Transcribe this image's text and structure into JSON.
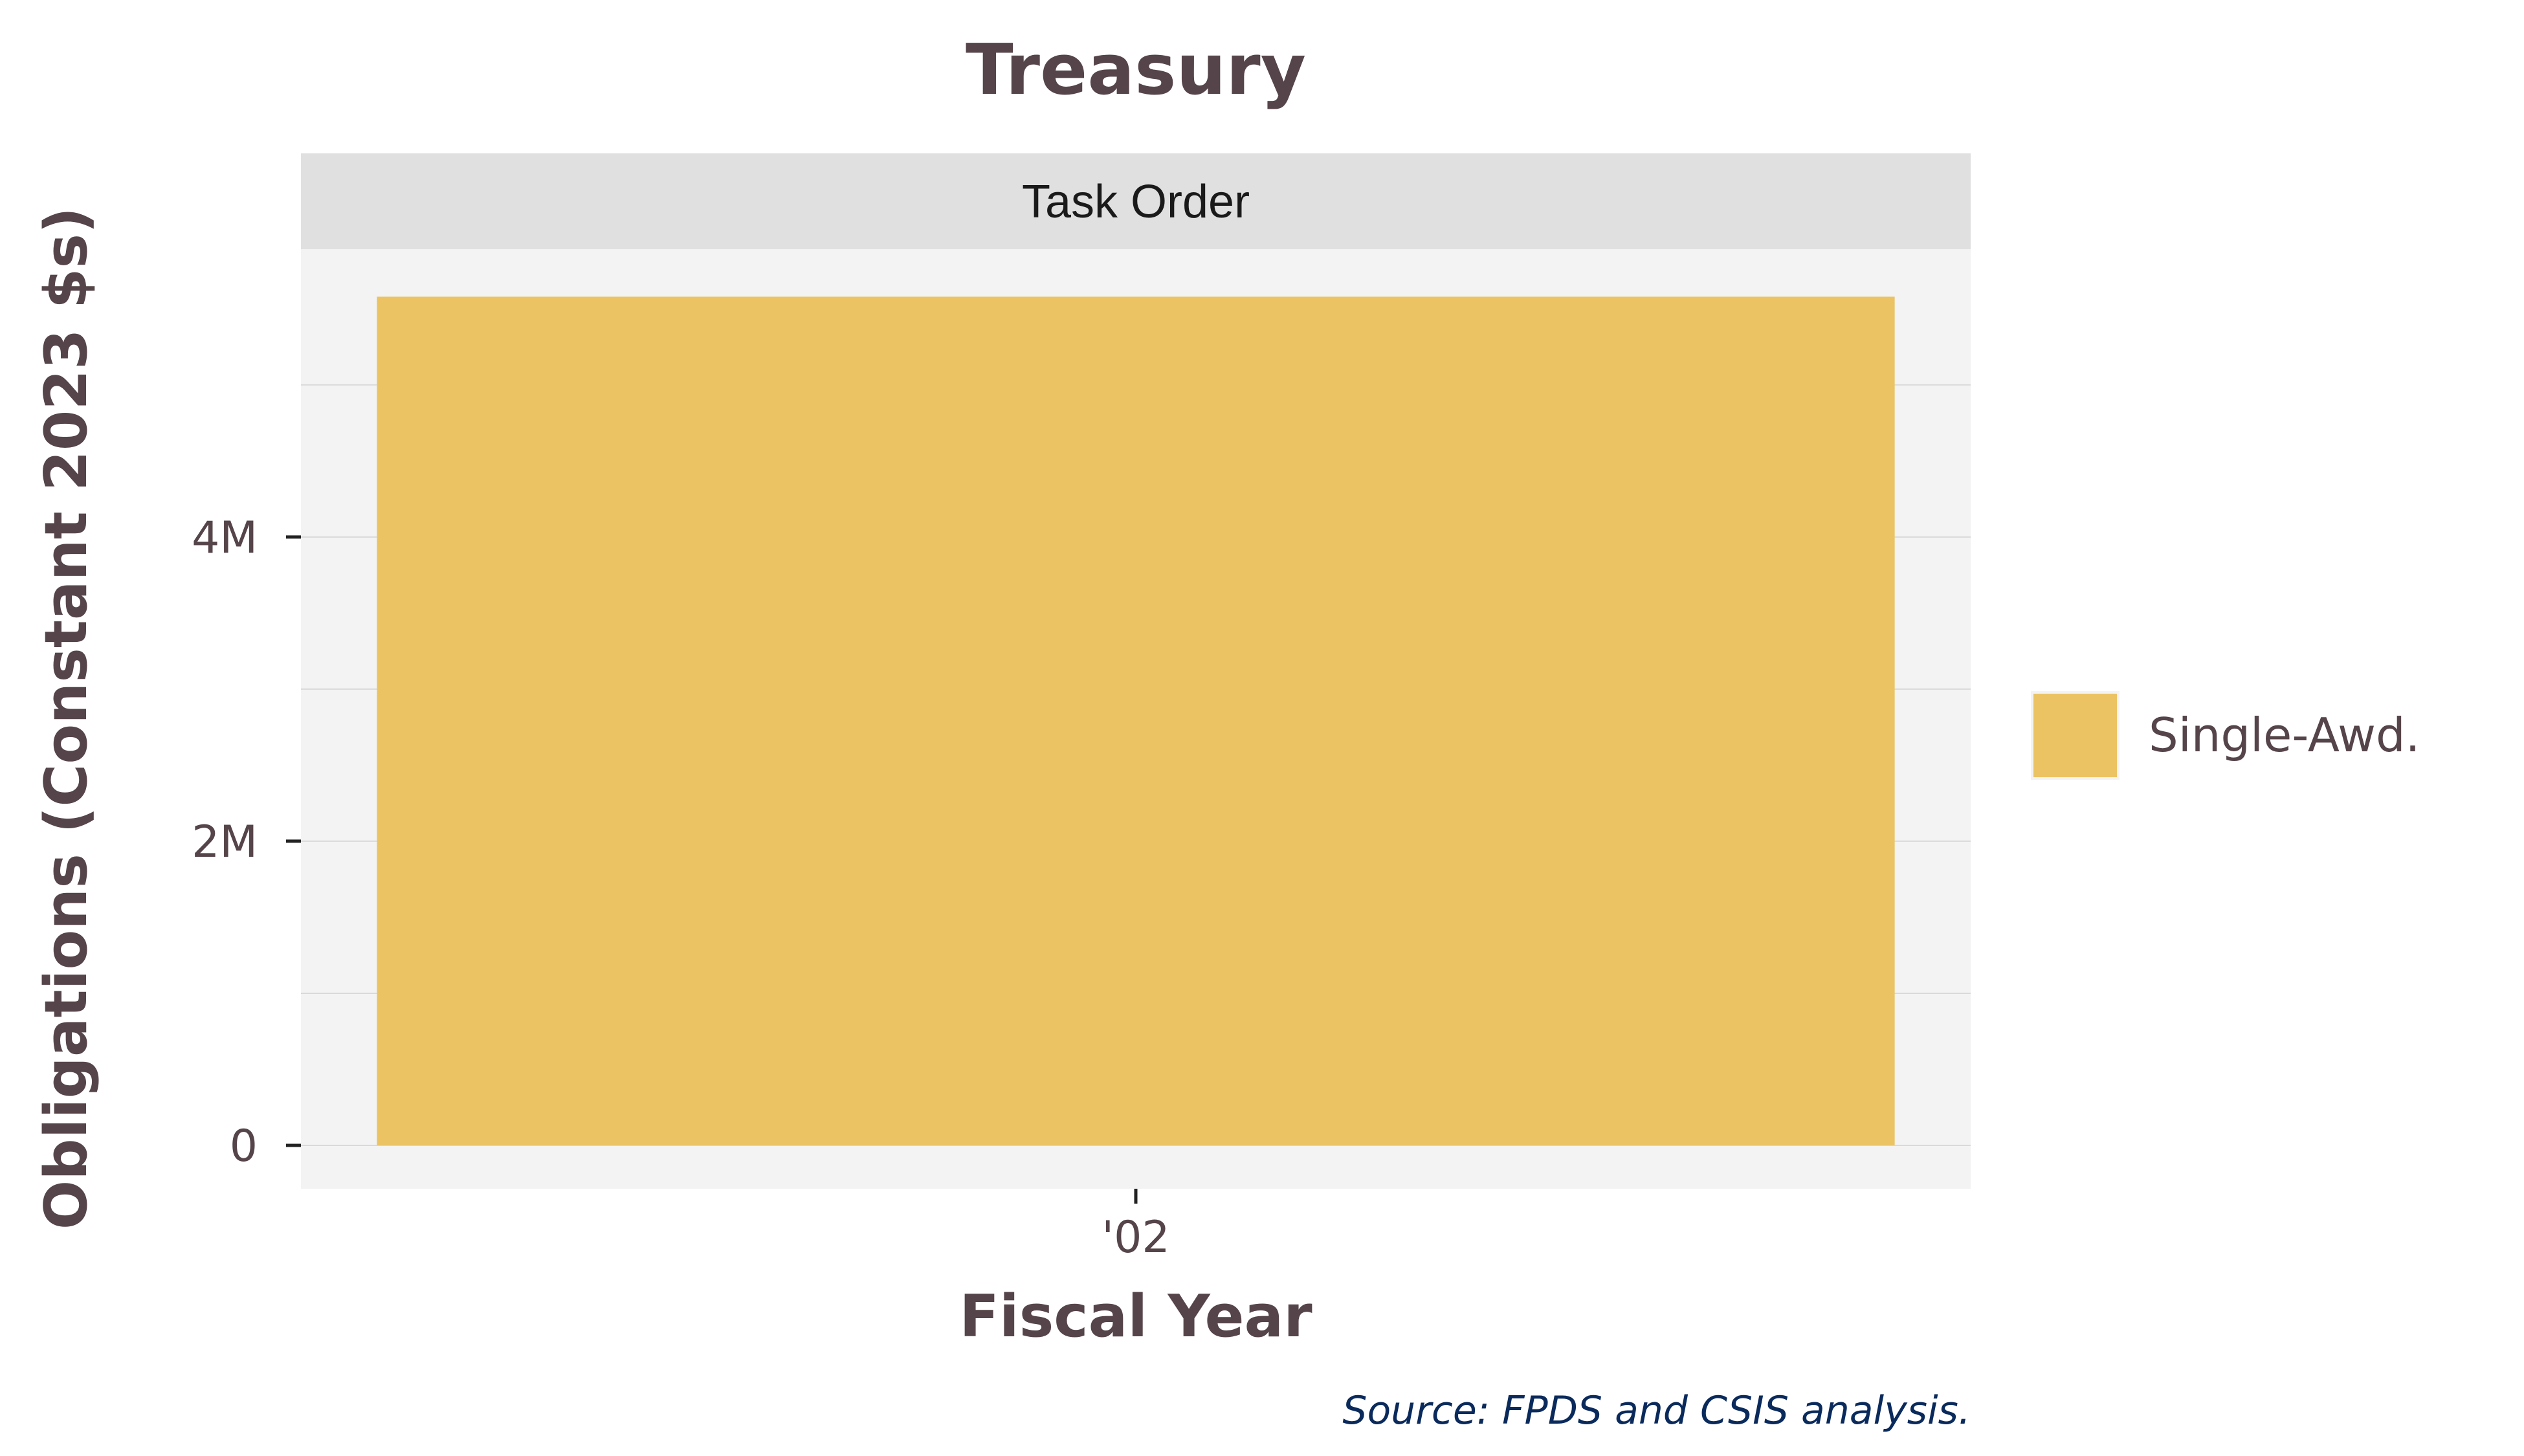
{
  "chart_data": {
    "type": "bar",
    "title": "Treasury",
    "facet": "Task Order",
    "xlabel": "Fiscal Year",
    "ylabel": "Obligations (Constant 2023 $s)",
    "categories": [
      "'02"
    ],
    "series": [
      {
        "name": "Single-Awd.",
        "values": [
          5580000
        ],
        "color": "#ECC363"
      }
    ],
    "ylim": [
      0,
      5850000
    ],
    "yticks": [
      {
        "value": 0,
        "label": "0"
      },
      {
        "value": 2000000,
        "label": "2M"
      },
      {
        "value": 4000000,
        "label": "4M"
      }
    ],
    "minor_gridlines": [
      1000000,
      3000000,
      5000000
    ],
    "grid": true,
    "legend_position": "right",
    "caption": "Source: FPDS and CSIS analysis."
  },
  "colors": {
    "panel_background": "#F3F3F3",
    "strip_background": "#E0E0E0",
    "gridline": "#D9D9D9",
    "text": "#554449"
  }
}
